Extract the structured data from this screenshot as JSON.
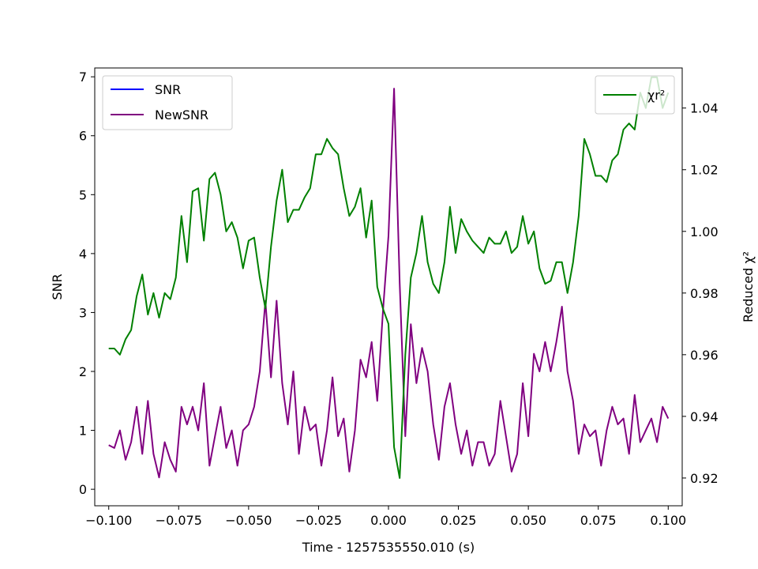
{
  "chart_data": {
    "type": "line",
    "xlabel": "Time - 1257535550.010 (s)",
    "ylabel_left": "SNR",
    "ylabel_right": "Reduced χ²",
    "xlim": [
      -0.105,
      0.105
    ],
    "ylim_left": [
      -0.28,
      7.15
    ],
    "ylim_right": [
      0.911,
      1.053
    ],
    "x_ticks": [
      -0.1,
      -0.075,
      -0.05,
      -0.025,
      0.0,
      0.025,
      0.05,
      0.075,
      0.1
    ],
    "x_tick_labels": [
      "−0.100",
      "−0.075",
      "−0.050",
      "−0.025",
      "0.000",
      "0.025",
      "0.050",
      "0.075",
      "0.100"
    ],
    "y_left_ticks": [
      0,
      1,
      2,
      3,
      4,
      5,
      6,
      7
    ],
    "y_left_tick_labels": [
      "0",
      "1",
      "2",
      "3",
      "4",
      "5",
      "6",
      "7"
    ],
    "y_right_ticks": [
      0.92,
      0.94,
      0.96,
      0.98,
      1.0,
      1.02,
      1.04
    ],
    "y_right_tick_labels": [
      "0.92",
      "0.94",
      "0.96",
      "0.98",
      "1.00",
      "1.02",
      "1.04"
    ],
    "grid": false,
    "legend_left": {
      "placement": "top-left",
      "entries": [
        {
          "label": "SNR",
          "color": "#0000ff"
        },
        {
          "label": "NewSNR",
          "color": "#800080"
        }
      ]
    },
    "legend_right": {
      "placement": "top-right",
      "entries": [
        {
          "label": "χr²",
          "color": "#008000"
        }
      ]
    },
    "series": [
      {
        "name": "NewSNR",
        "axis": "left",
        "color": "#800080",
        "x": [
          -0.1,
          -0.098,
          -0.096,
          -0.094,
          -0.092,
          -0.09,
          -0.088,
          -0.086,
          -0.084,
          -0.082,
          -0.08,
          -0.078,
          -0.076,
          -0.074,
          -0.072,
          -0.07,
          -0.068,
          -0.066,
          -0.064,
          -0.062,
          -0.06,
          -0.058,
          -0.056,
          -0.054,
          -0.052,
          -0.05,
          -0.048,
          -0.046,
          -0.044,
          -0.042,
          -0.04,
          -0.038,
          -0.036,
          -0.034,
          -0.032,
          -0.03,
          -0.028,
          -0.026,
          -0.024,
          -0.022,
          -0.02,
          -0.018,
          -0.016,
          -0.014,
          -0.012,
          -0.01,
          -0.008,
          -0.006,
          -0.004,
          -0.002,
          0.0,
          0.002,
          0.004,
          0.006,
          0.008,
          0.01,
          0.012,
          0.014,
          0.016,
          0.018,
          0.02,
          0.022,
          0.024,
          0.026,
          0.028,
          0.03,
          0.032,
          0.034,
          0.036,
          0.038,
          0.04,
          0.042,
          0.044,
          0.046,
          0.048,
          0.05,
          0.052,
          0.054,
          0.056,
          0.058,
          0.06,
          0.062,
          0.064,
          0.066,
          0.068,
          0.07,
          0.072,
          0.074,
          0.076,
          0.078,
          0.08,
          0.082,
          0.084,
          0.086,
          0.088,
          0.09,
          0.092,
          0.094,
          0.096,
          0.098,
          0.1
        ],
        "y": [
          0.75,
          0.7,
          1.0,
          0.5,
          0.8,
          1.4,
          0.6,
          1.5,
          0.6,
          0.2,
          0.8,
          0.5,
          0.3,
          1.4,
          1.1,
          1.4,
          1.0,
          1.8,
          0.4,
          0.9,
          1.4,
          0.7,
          1.0,
          0.4,
          1.0,
          1.1,
          1.4,
          2.0,
          3.2,
          1.9,
          3.2,
          1.8,
          1.1,
          2.0,
          0.6,
          1.4,
          1.0,
          1.1,
          0.4,
          1.0,
          1.9,
          0.9,
          1.2,
          0.3,
          1.0,
          2.2,
          1.9,
          2.5,
          1.5,
          3.0,
          4.3,
          6.8,
          3.5,
          0.9,
          2.8,
          1.8,
          2.4,
          2.0,
          1.1,
          0.5,
          1.4,
          1.8,
          1.1,
          0.6,
          1.0,
          0.4,
          0.8,
          0.8,
          0.4,
          0.6,
          1.5,
          0.9,
          0.3,
          0.6,
          1.8,
          0.9,
          2.3,
          2.0,
          2.5,
          2.0,
          2.5,
          3.1,
          2.0,
          1.5,
          0.6,
          1.1,
          0.9,
          1.0,
          0.4,
          1.0,
          1.4,
          1.1,
          1.2,
          0.6,
          1.6,
          0.8,
          1.0,
          1.2,
          0.8,
          1.4,
          1.2
        ]
      },
      {
        "name": "χr²",
        "axis": "right",
        "color": "#008000",
        "x": [
          -0.1,
          -0.098,
          -0.096,
          -0.094,
          -0.092,
          -0.09,
          -0.088,
          -0.086,
          -0.084,
          -0.082,
          -0.08,
          -0.078,
          -0.076,
          -0.074,
          -0.072,
          -0.07,
          -0.068,
          -0.066,
          -0.064,
          -0.062,
          -0.06,
          -0.058,
          -0.056,
          -0.054,
          -0.052,
          -0.05,
          -0.048,
          -0.046,
          -0.044,
          -0.042,
          -0.04,
          -0.038,
          -0.036,
          -0.034,
          -0.032,
          -0.03,
          -0.028,
          -0.026,
          -0.024,
          -0.022,
          -0.02,
          -0.018,
          -0.016,
          -0.014,
          -0.012,
          -0.01,
          -0.008,
          -0.006,
          -0.004,
          -0.002,
          0.0,
          0.002,
          0.004,
          0.006,
          0.008,
          0.01,
          0.012,
          0.014,
          0.016,
          0.018,
          0.02,
          0.022,
          0.024,
          0.026,
          0.028,
          0.03,
          0.032,
          0.034,
          0.036,
          0.038,
          0.04,
          0.042,
          0.044,
          0.046,
          0.048,
          0.05,
          0.052,
          0.054,
          0.056,
          0.058,
          0.06,
          0.062,
          0.064,
          0.066,
          0.068,
          0.07,
          0.072,
          0.074,
          0.076,
          0.078,
          0.08,
          0.082,
          0.084,
          0.086,
          0.088,
          0.09,
          0.092,
          0.094,
          0.096,
          0.098,
          0.1
        ],
        "y": [
          0.962,
          0.962,
          0.96,
          0.965,
          0.968,
          0.979,
          0.986,
          0.973,
          0.98,
          0.972,
          0.98,
          0.978,
          0.985,
          1.005,
          0.99,
          1.013,
          1.014,
          0.997,
          1.017,
          1.019,
          1.012,
          1.0,
          1.003,
          0.998,
          0.988,
          0.997,
          0.998,
          0.985,
          0.975,
          0.995,
          1.01,
          1.02,
          1.003,
          1.007,
          1.007,
          1.011,
          1.014,
          1.025,
          1.025,
          1.03,
          1.027,
          1.025,
          1.014,
          1.005,
          1.008,
          1.014,
          0.998,
          1.01,
          0.982,
          0.975,
          0.97,
          0.93,
          0.92,
          0.96,
          0.985,
          0.993,
          1.005,
          0.99,
          0.983,
          0.98,
          0.99,
          1.008,
          0.993,
          1.004,
          1.0,
          0.997,
          0.995,
          0.993,
          0.998,
          0.996,
          0.996,
          1.0,
          0.993,
          0.995,
          1.005,
          0.996,
          1.0,
          0.988,
          0.983,
          0.984,
          0.99,
          0.99,
          0.98,
          0.99,
          1.005,
          1.03,
          1.025,
          1.018,
          1.018,
          1.016,
          1.023,
          1.025,
          1.033,
          1.035,
          1.033,
          1.045,
          1.04,
          1.05,
          1.05,
          1.04,
          1.045
        ]
      }
    ]
  }
}
